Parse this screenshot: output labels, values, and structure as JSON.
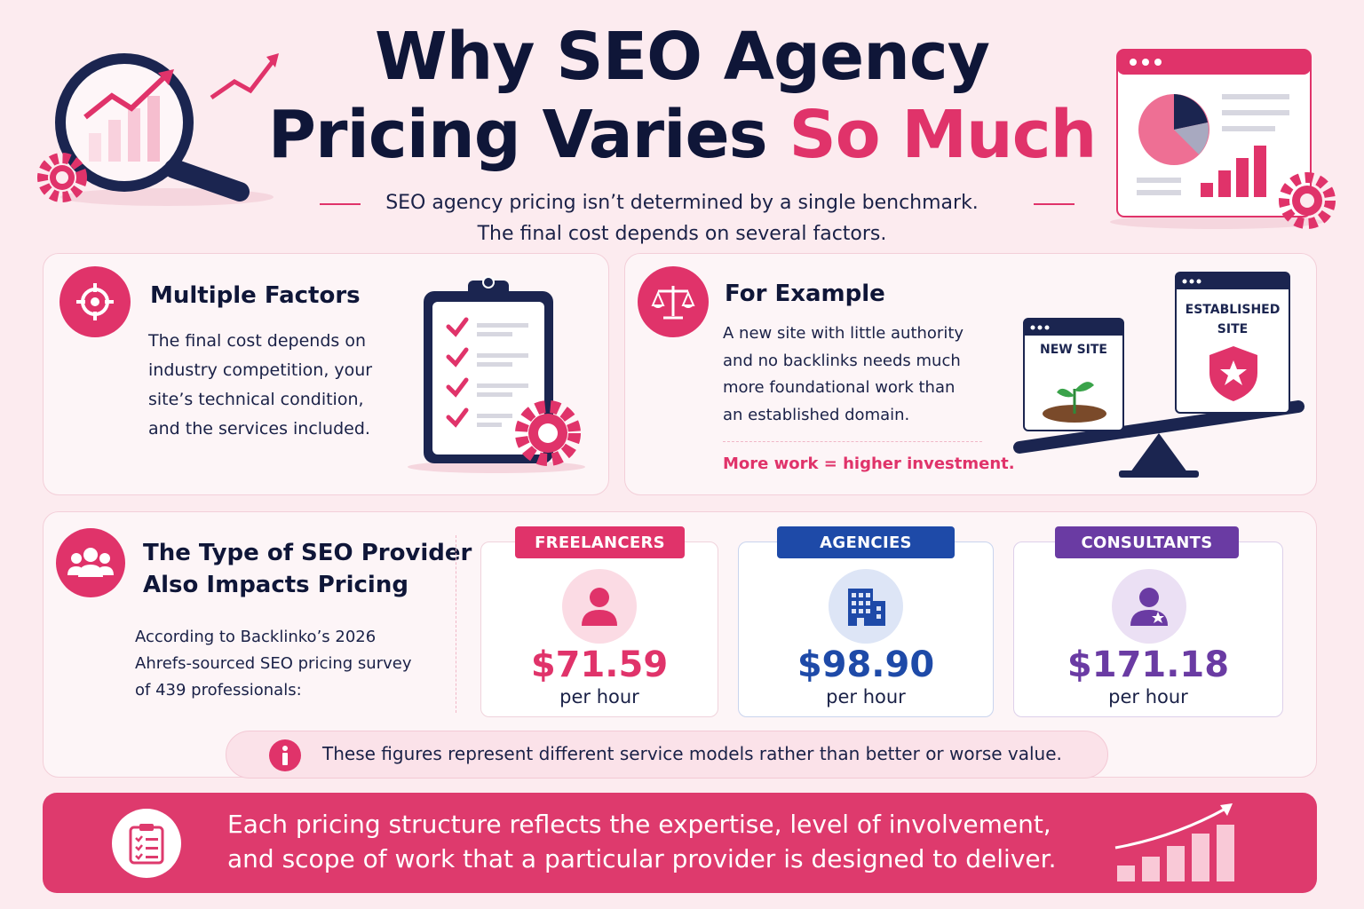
{
  "header": {
    "title_line1": "Why SEO Agency",
    "title_line2_main": "Pricing Varies ",
    "title_line2_accent": "So Much",
    "subtitle_line1": "SEO agency pricing isn’t determined by a single benchmark.",
    "subtitle_line2": "The final cost depends on several factors."
  },
  "factors": {
    "title": "Multiple Factors",
    "lines": [
      "The final cost depends on",
      "industry competition, your",
      "site’s technical condition,",
      "and the services included."
    ],
    "icon": "target-icon"
  },
  "example": {
    "title": "For Example",
    "lines": [
      "A new site with little authority",
      "and no backlinks needs much",
      "more foundational work than",
      "an established domain."
    ],
    "highlight": "More work = higher investment.",
    "new_site_label": "NEW SITE",
    "established_label_1": "ESTABLISHED",
    "established_label_2": "SITE",
    "icon": "scale-icon"
  },
  "provider": {
    "title_1": "The Type of SEO Provider",
    "title_2": "Also Impacts Pricing",
    "source_lines": [
      "According to Backlinko’s 2026",
      "Ahrefs-sourced SEO pricing survey",
      "of 439 professionals:"
    ],
    "icon": "users-icon",
    "items": [
      {
        "label": "FREELANCERS",
        "price": "$71.59",
        "unit": "per hour",
        "color": "#e0336a"
      },
      {
        "label": "AGENCIES",
        "price": "$98.90",
        "unit": "per hour",
        "color": "#1e4aa8"
      },
      {
        "label": "CONSULTANTS",
        "price": "$171.18",
        "unit": "per hour",
        "color": "#6a3ba3"
      }
    ]
  },
  "note": {
    "text": "These figures represent different service models rather than better or worse value.",
    "icon": "info-icon"
  },
  "footer": {
    "line1": "Each pricing structure reflects the expertise, level of involvement,",
    "line2": "and scope of work that a particular provider is designed to deliver.",
    "icon": "clipboard-icon"
  },
  "colors": {
    "accent": "#e0336a",
    "navy": "#0f1638",
    "background": "#fcebef"
  }
}
